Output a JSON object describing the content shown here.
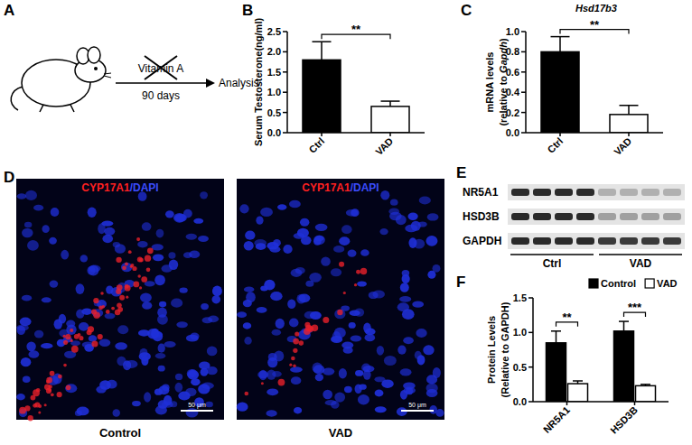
{
  "panels": [
    "A",
    "B",
    "C",
    "D",
    "E",
    "F"
  ],
  "schematic": {
    "treatment": "Vitamin A",
    "duration": "90 days",
    "outcome": "Analysis"
  },
  "chart_data": [
    {
      "type": "bar",
      "y_label": [
        [
          "Serum Testosterone(ng/ml)"
        ]
      ],
      "categories": [
        "Ctrl",
        "VAD"
      ],
      "values": [
        1.8,
        0.65
      ],
      "errors": [
        0.45,
        0.13
      ],
      "colors": [
        "#000000",
        "#ffffff"
      ],
      "ylim": [
        0,
        2.5
      ],
      "yticks": [
        {
          "value": 0,
          "label": "0.0"
        },
        0.5,
        {
          "value": 1,
          "label": "1.0"
        },
        1.5,
        {
          "value": 2,
          "label": "2.0"
        },
        2.5
      ],
      "significance": [
        "**"
      ]
    },
    {
      "type": "bar",
      "title": "Hsd17b3",
      "y_label": [
        [
          "mRNA levels"
        ],
        [
          "(relative to ",
          "Gapdh",
          ")"
        ]
      ],
      "categories": [
        "Ctrl",
        "VAD"
      ],
      "values": [
        0.8,
        0.18
      ],
      "errors": [
        0.15,
        0.09
      ],
      "colors": [
        "#000000",
        "#ffffff"
      ],
      "ylim": [
        0,
        1.0
      ],
      "yticks": [
        {
          "value": 0,
          "label": "0.0"
        },
        0.2,
        0.4,
        0.6,
        0.8,
        {
          "value": 1,
          "label": "1.0"
        }
      ],
      "significance": [
        "**"
      ]
    },
    {
      "type": "grouped_bar",
      "y_label": [
        [
          "Protein Levels"
        ],
        [
          "(Relative to GAPDH)"
        ]
      ],
      "categories": [
        "NR5A1",
        "HSD3B"
      ],
      "series": [
        {
          "name": "Control",
          "color": "#000000",
          "values": [
            0.85,
            1.02
          ],
          "errors": [
            0.17,
            0.14
          ]
        },
        {
          "name": "VAD",
          "color": "#ffffff",
          "values": [
            0.26,
            0.23
          ],
          "errors": [
            0.04,
            0.02
          ]
        }
      ],
      "ylim": [
        0,
        1.5
      ],
      "yticks": [
        {
          "value": 0,
          "label": "0.0"
        },
        0.5,
        {
          "value": 1,
          "label": "1.0"
        },
        1.5
      ],
      "legend": "top-right",
      "significance": [
        "**",
        "***"
      ]
    }
  ],
  "images": {
    "title": [
      "CYP17A1",
      "/DAPI"
    ],
    "labels": [
      "Control",
      "VAD"
    ],
    "scale_bar": "50 μm"
  },
  "blot": {
    "rows": [
      "NR5A1",
      "HSD3B",
      "GAPDH"
    ],
    "groups": [
      "Ctrl",
      "VAD"
    ]
  }
}
